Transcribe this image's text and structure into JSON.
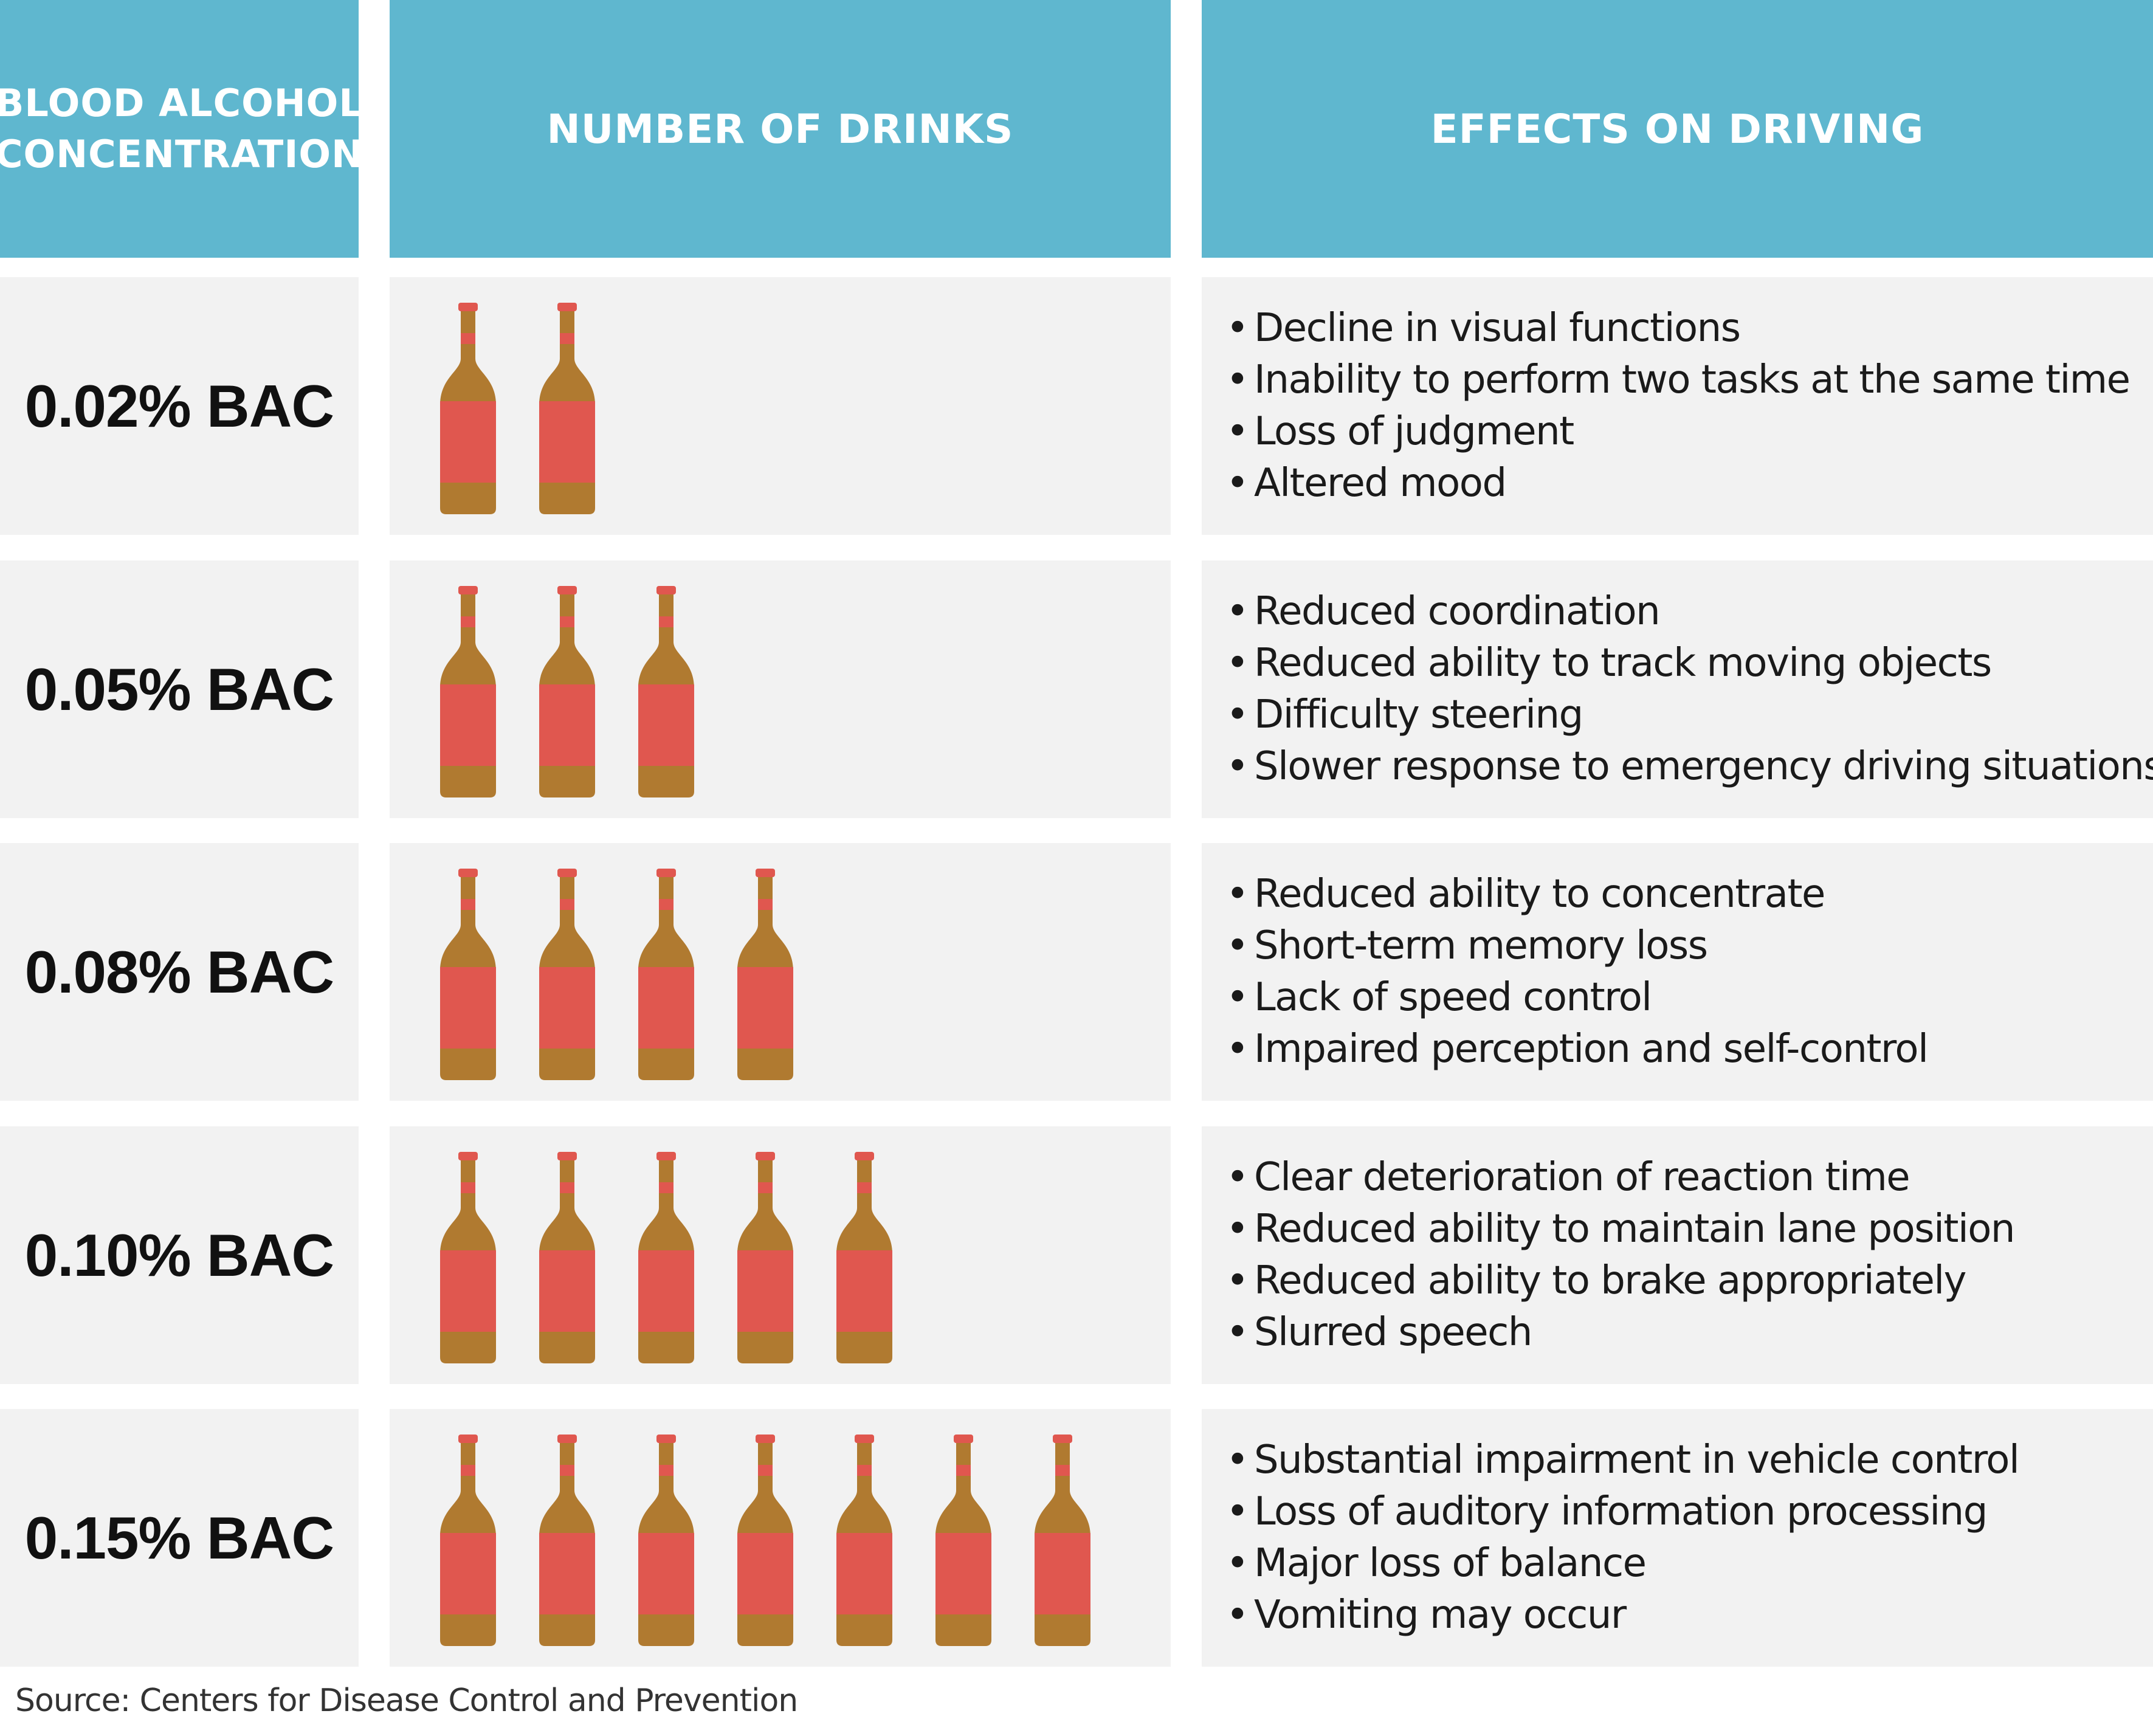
{
  "headers": {
    "bac": "BLOOD ALCOHOL CONCENTRATION",
    "drinks": "NUMBER OF DRINKS",
    "effects": "EFFECTS ON DRIVING"
  },
  "rows": [
    {
      "bac": "0.02% BAC",
      "drinks": 2,
      "effects": [
        "Decline in visual functions",
        "Inability to perform two tasks at the same time",
        "Loss of judgment",
        "Altered mood"
      ]
    },
    {
      "bac": "0.05% BAC",
      "drinks": 3,
      "effects": [
        "Reduced coordination",
        "Reduced ability to track moving objects",
        "Difficulty steering",
        "Slower response to emergency driving situations"
      ]
    },
    {
      "bac": "0.08% BAC",
      "drinks": 4,
      "effects": [
        "Reduced ability to concentrate",
        "Short-term memory loss",
        "Lack of speed control",
        "Impaired perception and self-control"
      ]
    },
    {
      "bac": "0.10% BAC",
      "drinks": 5,
      "effects": [
        "Clear deterioration of reaction time",
        "Reduced ability to maintain lane position",
        "Reduced ability to brake appropriately",
        "Slurred speech"
      ]
    },
    {
      "bac": "0.15% BAC",
      "drinks": 7,
      "effects": [
        "Substantial impairment in vehicle control",
        "Loss of auditory information processing",
        "Major loss of balance",
        "Vomiting may occur"
      ]
    }
  ],
  "bullet": "•",
  "source": "Source: Centers for Disease Control and Prevention",
  "icon": "beer-bottle-icon",
  "colors": {
    "header_bg": "#5fb7cf",
    "row_bg": "#f2f2f2",
    "bottle_body": "#b07a30",
    "bottle_label": "#e0574f"
  }
}
